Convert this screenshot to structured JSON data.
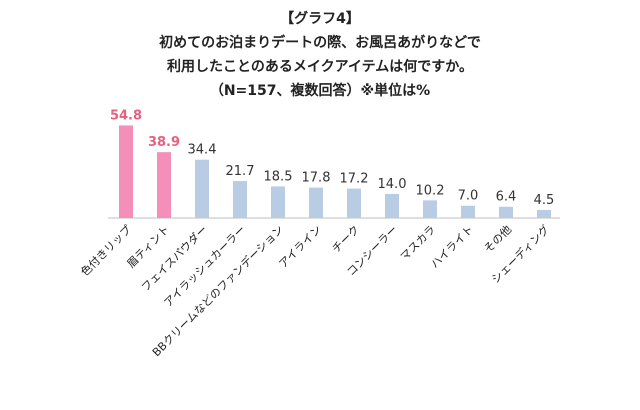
{
  "title_lines": [
    "【グラフ4】",
    "初めてのお泊まりデートの際、お風呂あがりなどで",
    "利用したことのあるメイクアイテムは何ですか。",
    "（N=157、複数回答）※単位は%"
  ],
  "chart_data": {
    "type": "bar",
    "categories": [
      "色付きリップ",
      "眉ティント",
      "フェイスパウダー",
      "アイラッシュカーラー",
      "BBクリームなどのファンデーション",
      "アイライン",
      "チーク",
      "コンシーラー",
      "マスカラ",
      "ハイライト",
      "その他",
      "シェーディング"
    ],
    "values": [
      54.8,
      38.9,
      34.4,
      21.7,
      18.5,
      17.8,
      17.2,
      14.0,
      10.2,
      7.0,
      6.4,
      4.5
    ],
    "value_labels": [
      "54.8",
      "38.9",
      "34.4",
      "21.7",
      "18.5",
      "17.8",
      "17.2",
      "14.0",
      "10.2",
      "7.0",
      "6.4",
      "4.5"
    ],
    "highlight_count": 2,
    "colors": {
      "highlight": "#f48fb9",
      "normal": "#b8cce4",
      "highlight_label": "#e8607f",
      "axis": "#bfbfbf"
    },
    "ylim": [
      0,
      60
    ],
    "grid": false,
    "legend": "none"
  }
}
